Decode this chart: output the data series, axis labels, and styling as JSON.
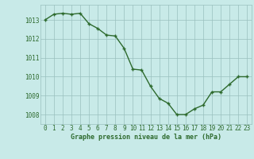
{
  "x": [
    0,
    1,
    2,
    3,
    4,
    5,
    6,
    7,
    8,
    9,
    10,
    11,
    12,
    13,
    14,
    15,
    16,
    17,
    18,
    19,
    20,
    21,
    22,
    23
  ],
  "y": [
    1013.0,
    1013.3,
    1013.35,
    1013.3,
    1013.35,
    1012.8,
    1012.55,
    1012.2,
    1012.15,
    1011.5,
    1010.4,
    1010.35,
    1009.5,
    1008.85,
    1008.6,
    1008.0,
    1008.0,
    1008.3,
    1008.5,
    1009.2,
    1009.2,
    1009.6,
    1010.0,
    1010.0
  ],
  "line_color": "#2d6a2d",
  "marker_color": "#2d6a2d",
  "bg_color": "#c8eae8",
  "grid_color": "#9ac0be",
  "xlabel": "Graphe pression niveau de la mer (hPa)",
  "xlabel_color": "#2d6a2d",
  "tick_color": "#2d6a2d",
  "ylim": [
    1007.5,
    1013.8
  ],
  "xlim": [
    -0.5,
    23.5
  ],
  "yticks": [
    1008,
    1009,
    1010,
    1011,
    1012,
    1013
  ],
  "xticks": [
    0,
    1,
    2,
    3,
    4,
    5,
    6,
    7,
    8,
    9,
    10,
    11,
    12,
    13,
    14,
    15,
    16,
    17,
    18,
    19,
    20,
    21,
    22,
    23
  ],
  "xtick_labels": [
    "0",
    "1",
    "2",
    "3",
    "4",
    "5",
    "6",
    "7",
    "8",
    "9",
    "10",
    "11",
    "12",
    "13",
    "14",
    "15",
    "16",
    "17",
    "18",
    "19",
    "20",
    "21",
    "22",
    "23"
  ],
  "marker_size": 3.5,
  "line_width": 1.0,
  "tick_fontsize": 5.5,
  "xlabel_fontsize": 6.0
}
